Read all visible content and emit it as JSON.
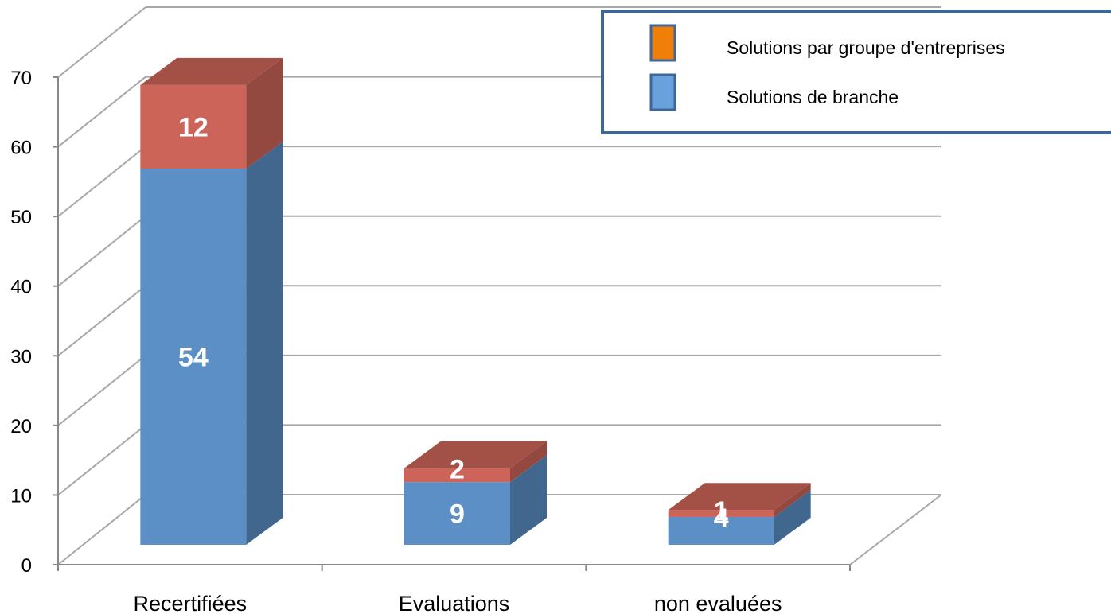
{
  "chart_data": {
    "type": "bar",
    "stacked": true,
    "three_d": true,
    "categories": [
      "Recertifiées",
      "Evaluations",
      "non evaluées"
    ],
    "series": [
      {
        "name": "Solutions de branche",
        "values": [
          54,
          9,
          4
        ],
        "color": "#5b8fc5"
      },
      {
        "name": "Solutions par groupe d'entreprises",
        "values": [
          12,
          2,
          1
        ],
        "color": "#cc6459"
      }
    ],
    "data_labels": [
      [
        "54",
        "9",
        "4"
      ],
      [
        "12",
        "2",
        "1"
      ]
    ],
    "yticks": [
      "0",
      "10",
      "20",
      "30",
      "40",
      "50",
      "60",
      "70"
    ],
    "ylim": [
      0,
      70
    ],
    "grid": true,
    "legend": {
      "placement": "top-right",
      "entries": [
        {
          "label": "Solutions par groupe d'entreprises",
          "color": "#f07f09"
        },
        {
          "label": "Solutions de branche",
          "color": "#69a1dc"
        }
      ],
      "border_color": "#3e6698"
    },
    "title": "",
    "xlabel": "",
    "ylabel": ""
  }
}
